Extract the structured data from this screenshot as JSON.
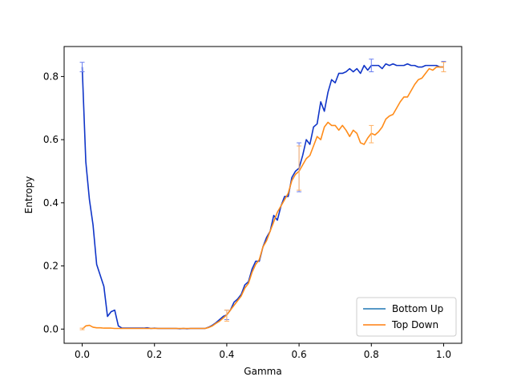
{
  "chart_data": {
    "type": "line",
    "xlabel": "Gamma",
    "ylabel": "Entropy",
    "xlim": [
      -0.05,
      1.05
    ],
    "ylim": [
      -0.045,
      0.895
    ],
    "xticks": [
      0.0,
      0.2,
      0.4,
      0.6,
      0.8,
      1.0
    ],
    "xtick_labels": [
      "0.0",
      "0.2",
      "0.4",
      "0.6",
      "0.8",
      "1.0"
    ],
    "yticks": [
      0.0,
      0.2,
      0.4,
      0.6,
      0.8
    ],
    "ytick_labels": [
      "0.0",
      "0.2",
      "0.4",
      "0.6",
      "0.8"
    ],
    "legend_position": "bottom-right",
    "legend": [
      "Bottom Up",
      "Top Down"
    ],
    "legend_colors": [
      "#1f77b4",
      "#ff7f0e"
    ],
    "series": [
      {
        "name": "Bottom Up",
        "color": "#1035c8",
        "x": [
          0.0,
          0.01,
          0.02,
          0.03,
          0.04,
          0.05,
          0.06,
          0.07,
          0.08,
          0.09,
          0.1,
          0.11,
          0.12,
          0.13,
          0.14,
          0.15,
          0.16,
          0.17,
          0.18,
          0.19,
          0.2,
          0.21,
          0.22,
          0.23,
          0.24,
          0.25,
          0.26,
          0.27,
          0.28,
          0.29,
          0.3,
          0.31,
          0.32,
          0.33,
          0.34,
          0.35,
          0.36,
          0.37,
          0.38,
          0.39,
          0.4,
          0.41,
          0.42,
          0.43,
          0.44,
          0.45,
          0.46,
          0.47,
          0.48,
          0.49,
          0.5,
          0.51,
          0.52,
          0.53,
          0.54,
          0.55,
          0.56,
          0.57,
          0.58,
          0.59,
          0.6,
          0.61,
          0.62,
          0.63,
          0.64,
          0.65,
          0.66,
          0.67,
          0.68,
          0.69,
          0.7,
          0.71,
          0.72,
          0.73,
          0.74,
          0.75,
          0.76,
          0.77,
          0.78,
          0.79,
          0.8,
          0.81,
          0.82,
          0.83,
          0.84,
          0.85,
          0.86,
          0.87,
          0.88,
          0.89,
          0.9,
          0.91,
          0.92,
          0.93,
          0.94,
          0.95,
          0.96,
          0.97,
          0.98,
          0.99,
          1.0
        ],
        "values": [
          0.83,
          0.53,
          0.41,
          0.33,
          0.205,
          0.17,
          0.135,
          0.04,
          0.055,
          0.06,
          0.01,
          0.003,
          0.003,
          0.003,
          0.003,
          0.003,
          0.003,
          0.003,
          0.004,
          0.002,
          0.003,
          0.002,
          0.002,
          0.002,
          0.002,
          0.002,
          0.002,
          0.001,
          0.002,
          0.001,
          0.002,
          0.002,
          0.002,
          0.002,
          0.002,
          0.006,
          0.012,
          0.02,
          0.03,
          0.04,
          0.045,
          0.06,
          0.085,
          0.095,
          0.11,
          0.14,
          0.15,
          0.19,
          0.215,
          0.215,
          0.26,
          0.29,
          0.31,
          0.36,
          0.345,
          0.39,
          0.42,
          0.42,
          0.48,
          0.5,
          0.51,
          0.55,
          0.6,
          0.585,
          0.64,
          0.65,
          0.72,
          0.69,
          0.75,
          0.79,
          0.78,
          0.81,
          0.81,
          0.815,
          0.825,
          0.815,
          0.825,
          0.81,
          0.835,
          0.82,
          0.835,
          0.835,
          0.835,
          0.825,
          0.84,
          0.835,
          0.84,
          0.835,
          0.835,
          0.835,
          0.84,
          0.835,
          0.835,
          0.83,
          0.83,
          0.835,
          0.835,
          0.835,
          0.835,
          0.83,
          0.83
        ]
      },
      {
        "name": "Top Down",
        "color": "#ff8c1a",
        "x": [
          0.0,
          0.01,
          0.02,
          0.03,
          0.04,
          0.05,
          0.06,
          0.07,
          0.08,
          0.09,
          0.1,
          0.11,
          0.12,
          0.13,
          0.14,
          0.15,
          0.16,
          0.17,
          0.18,
          0.19,
          0.2,
          0.21,
          0.22,
          0.23,
          0.24,
          0.25,
          0.26,
          0.27,
          0.28,
          0.29,
          0.3,
          0.31,
          0.32,
          0.33,
          0.34,
          0.35,
          0.36,
          0.37,
          0.38,
          0.39,
          0.4,
          0.41,
          0.42,
          0.43,
          0.44,
          0.45,
          0.46,
          0.47,
          0.48,
          0.49,
          0.5,
          0.51,
          0.52,
          0.53,
          0.54,
          0.55,
          0.56,
          0.57,
          0.58,
          0.59,
          0.6,
          0.61,
          0.62,
          0.63,
          0.64,
          0.65,
          0.66,
          0.67,
          0.68,
          0.69,
          0.7,
          0.71,
          0.72,
          0.73,
          0.74,
          0.75,
          0.76,
          0.77,
          0.78,
          0.79,
          0.8,
          0.81,
          0.82,
          0.83,
          0.84,
          0.85,
          0.86,
          0.87,
          0.88,
          0.89,
          0.9,
          0.91,
          0.92,
          0.93,
          0.94,
          0.95,
          0.96,
          0.97,
          0.98,
          0.99,
          1.0
        ],
        "values": [
          0.0,
          0.01,
          0.012,
          0.006,
          0.004,
          0.004,
          0.003,
          0.003,
          0.003,
          0.002,
          0.002,
          0.002,
          0.002,
          0.002,
          0.002,
          0.002,
          0.002,
          0.002,
          0.002,
          0.002,
          0.002,
          0.002,
          0.002,
          0.002,
          0.002,
          0.002,
          0.002,
          0.002,
          0.002,
          0.002,
          0.002,
          0.002,
          0.002,
          0.002,
          0.002,
          0.005,
          0.01,
          0.018,
          0.025,
          0.035,
          0.045,
          0.06,
          0.075,
          0.09,
          0.105,
          0.13,
          0.145,
          0.18,
          0.205,
          0.22,
          0.26,
          0.28,
          0.31,
          0.34,
          0.37,
          0.39,
          0.41,
          0.43,
          0.47,
          0.49,
          0.5,
          0.52,
          0.54,
          0.55,
          0.58,
          0.61,
          0.6,
          0.64,
          0.655,
          0.645,
          0.645,
          0.63,
          0.645,
          0.63,
          0.61,
          0.63,
          0.62,
          0.59,
          0.585,
          0.605,
          0.62,
          0.615,
          0.625,
          0.64,
          0.665,
          0.675,
          0.68,
          0.7,
          0.72,
          0.735,
          0.735,
          0.755,
          0.775,
          0.79,
          0.795,
          0.81,
          0.825,
          0.82,
          0.83,
          0.83,
          0.83
        ]
      }
    ],
    "error_bars": [
      {
        "series": "Bottom Up",
        "color": "#6a7ff0",
        "x": 0.0,
        "y": 0.83,
        "low": 0.815,
        "high": 0.845
      },
      {
        "series": "Bottom Up",
        "color": "#6a7ff0",
        "x": 0.4,
        "y": 0.045,
        "low": 0.03,
        "high": 0.06
      },
      {
        "series": "Bottom Up",
        "color": "#6a7ff0",
        "x": 0.6,
        "y": 0.51,
        "low": 0.435,
        "high": 0.59
      },
      {
        "series": "Bottom Up",
        "color": "#6a7ff0",
        "x": 0.8,
        "y": 0.835,
        "low": 0.815,
        "high": 0.855
      },
      {
        "series": "Bottom Up",
        "color": "#6a7ff0",
        "x": 1.0,
        "y": 0.83,
        "low": 0.815,
        "high": 0.848
      },
      {
        "series": "Top Down",
        "color": "#ffb266",
        "x": 0.0,
        "y": 0.0,
        "low": -0.002,
        "high": 0.003
      },
      {
        "series": "Top Down",
        "color": "#ffb266",
        "x": 0.4,
        "y": 0.045,
        "low": 0.025,
        "high": 0.06
      },
      {
        "series": "Top Down",
        "color": "#ffb266",
        "x": 0.6,
        "y": 0.5,
        "low": 0.44,
        "high": 0.58
      },
      {
        "series": "Top Down",
        "color": "#ffb266",
        "x": 0.8,
        "y": 0.62,
        "low": 0.59,
        "high": 0.645
      },
      {
        "series": "Top Down",
        "color": "#ffb266",
        "x": 1.0,
        "y": 0.83,
        "low": 0.815,
        "high": 0.845
      }
    ]
  }
}
